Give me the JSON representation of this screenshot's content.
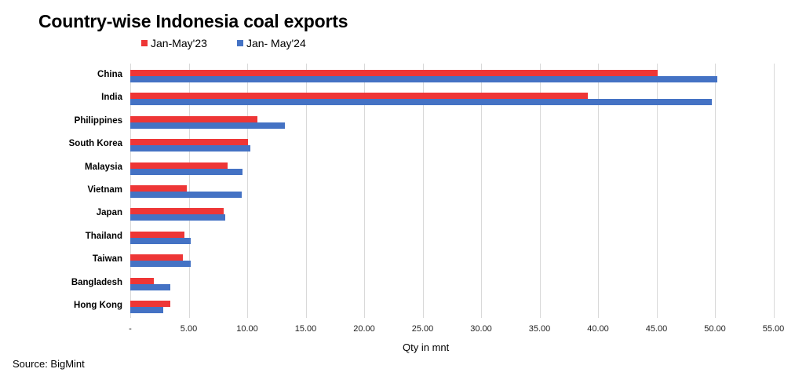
{
  "chart_data": {
    "type": "bar",
    "orientation": "horizontal",
    "title": "Country-wise Indonesia coal exports",
    "xlabel": "Qty in mnt",
    "ylabel": "",
    "xlim": [
      0,
      55
    ],
    "grid": true,
    "legend_position": "top",
    "x_ticks": [
      "-",
      "5.00",
      "10.00",
      "15.00",
      "20.00",
      "25.00",
      "30.00",
      "35.00",
      "40.00",
      "45.00",
      "50.00",
      "55.00"
    ],
    "categories": [
      "China",
      "India",
      "Philippines",
      "South Korea",
      "Malaysia",
      "Vietnam",
      "Japan",
      "Thailand",
      "Taiwan",
      "Bangladesh",
      "Hong Kong"
    ],
    "series": [
      {
        "name": "Jan-May'23",
        "color": "#ee3636",
        "values": [
          45.1,
          39.1,
          10.9,
          10.1,
          8.3,
          4.8,
          8.0,
          4.6,
          4.5,
          2.0,
          3.4
        ]
      },
      {
        "name": "Jan- May'24",
        "color": "#4472c4",
        "values": [
          50.2,
          49.7,
          13.2,
          10.3,
          9.6,
          9.5,
          8.1,
          5.2,
          5.2,
          3.4,
          2.8
        ]
      }
    ]
  },
  "source": "Source: BigMint"
}
